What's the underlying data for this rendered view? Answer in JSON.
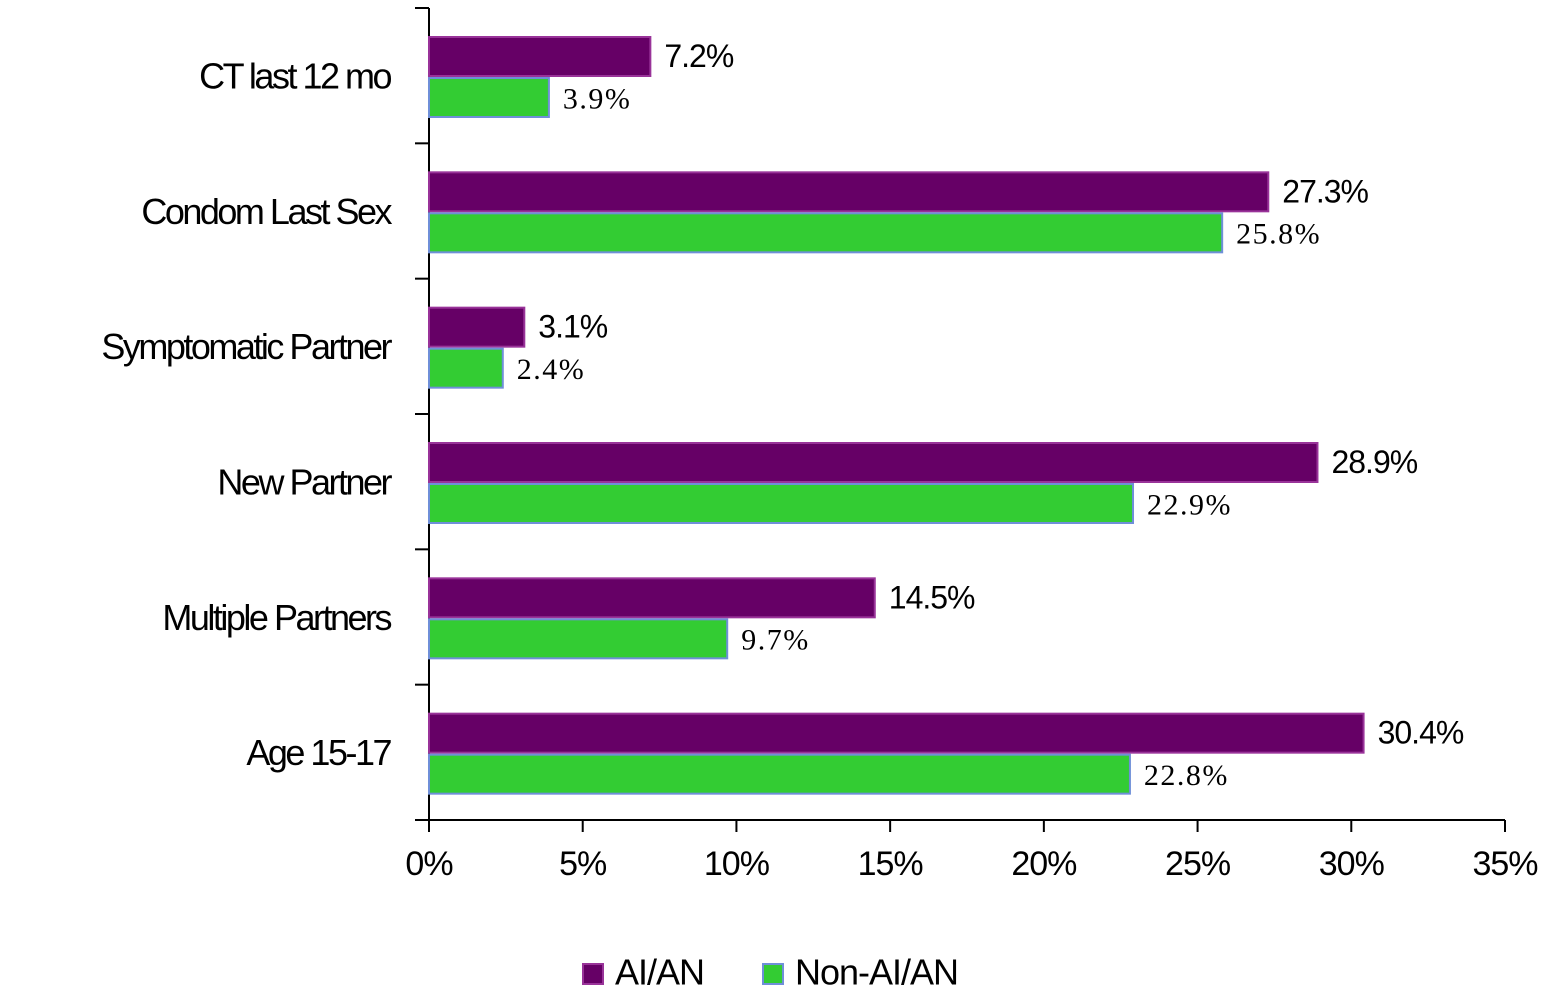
{
  "chart_data": {
    "type": "hbar",
    "categories": [
      "CT last 12 mo",
      "Condom Last Sex",
      "Symptomatic Partner",
      "New Partner",
      "Multiple Partners",
      "Age 15-17"
    ],
    "series": [
      {
        "name": "AI/AN",
        "color": "#660066",
        "values": [
          7.2,
          27.3,
          3.1,
          28.9,
          14.5,
          30.4
        ],
        "value_labels": [
          "7.2%",
          "27.3%",
          "3.1%",
          "28.9%",
          "14.5%",
          "30.4%"
        ]
      },
      {
        "name": "Non-AI/AN",
        "color": "#33cc33",
        "values": [
          3.9,
          25.8,
          2.4,
          22.9,
          9.7,
          22.8
        ],
        "value_labels": [
          "3.9%",
          "25.8%",
          "2.4%",
          "22.9%",
          "9.7%",
          "22.8%"
        ]
      }
    ],
    "xlim": [
      0,
      35
    ],
    "xticks": [
      {
        "value": 0,
        "label": "0%"
      },
      {
        "value": 5,
        "label": "5%"
      },
      {
        "value": 10,
        "label": "10%"
      },
      {
        "value": 15,
        "label": "15%"
      },
      {
        "value": 20,
        "label": "20%"
      },
      {
        "value": 25,
        "label": "25%"
      },
      {
        "value": 30,
        "label": "30%"
      },
      {
        "value": 35,
        "label": "35%"
      }
    ],
    "legend": "bottom"
  }
}
